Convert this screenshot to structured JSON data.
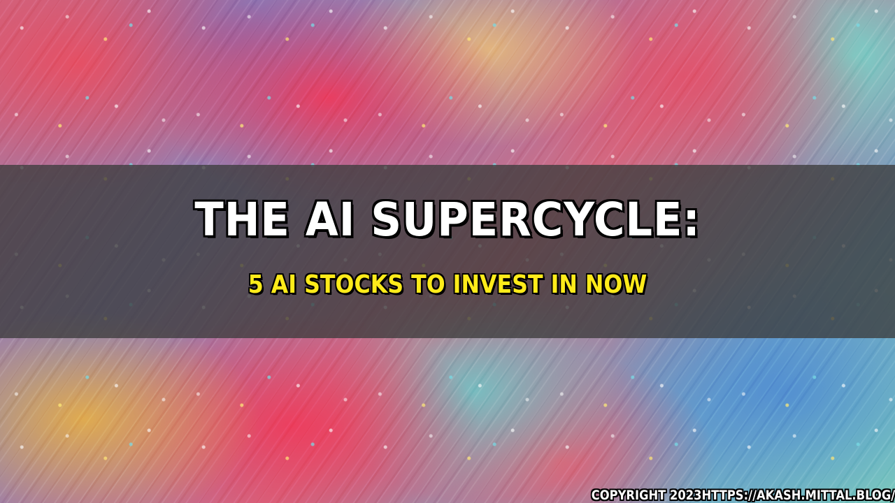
{
  "banner": {
    "title": "THE AI SUPERCYCLE:",
    "subtitle": "5 AI STOCKS TO INVEST IN NOW",
    "copyright": "COPYRIGHT 2023HTTPS://AKASH.MITTAL.BLOG/"
  },
  "colors": {
    "title": "#ffffff",
    "subtitle": "#ffeb1a",
    "band": "#3c3c3c",
    "outline": "#000000"
  }
}
